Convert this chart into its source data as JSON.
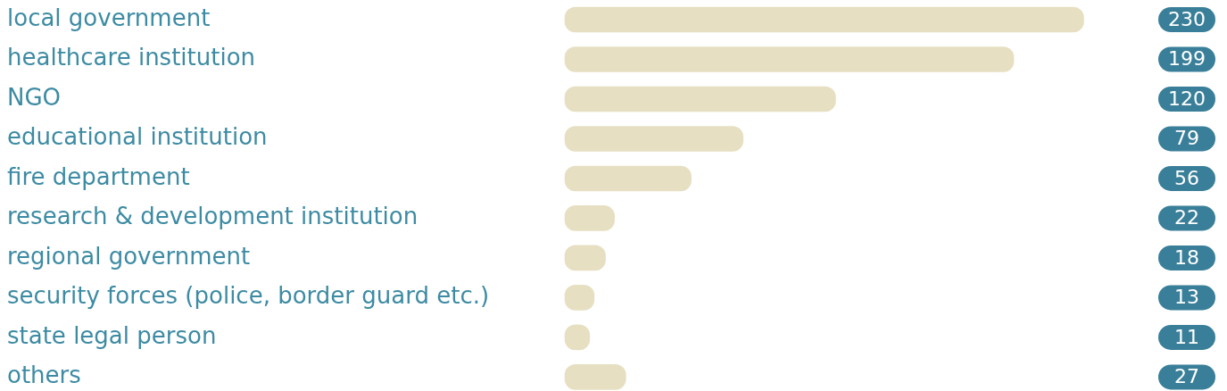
{
  "chart_data": {
    "type": "bar",
    "orientation": "horizontal",
    "categories": [
      "local government",
      "healthcare institution",
      "NGO",
      "educational institution",
      "fire department",
      "research & development institution",
      "regional government",
      "security forces (police, border guard etc.)",
      "state legal person",
      "others"
    ],
    "values": [
      230,
      199,
      120,
      79,
      56,
      22,
      18,
      13,
      11,
      27
    ],
    "color": "#e6dfc2",
    "data_labels": true,
    "legend": false
  }
}
